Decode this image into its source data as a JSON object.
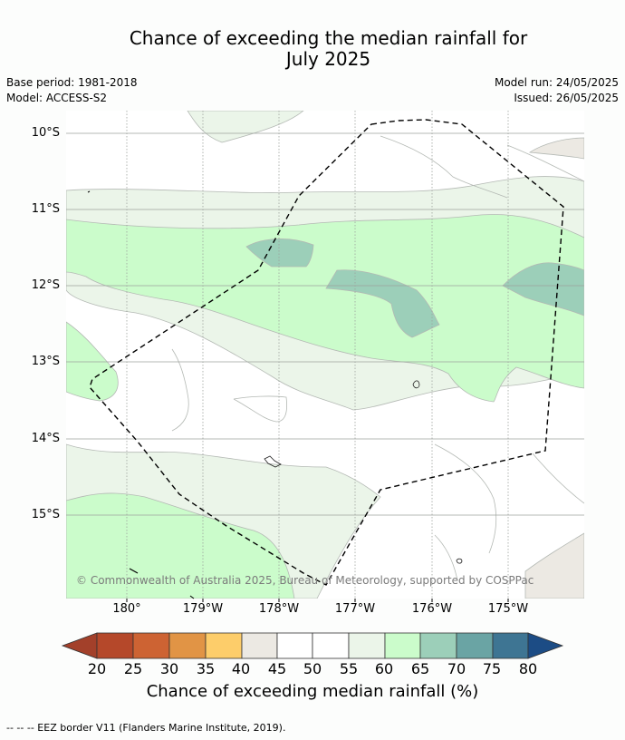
{
  "title_line1": "Chance of exceeding the median rainfall for",
  "title_line2": "July 2025",
  "base_period": "Base period: 1981-2018",
  "model": "Model: ACCESS-S2",
  "model_run": "Model run: 24/05/2025",
  "issued": "Issued: 26/05/2025",
  "lat_labels": [
    "10°S",
    "11°S",
    "12°S",
    "13°S",
    "14°S",
    "15°S"
  ],
  "lon_labels": [
    "180°",
    "179°W",
    "178°W",
    "177°W",
    "176°W",
    "175°W"
  ],
  "copyright": "© Commonwealth of Australia 2025, Bureau of Meteorology, supported by COSPPac",
  "colorbar": {
    "title": "Chance of exceeding median rainfall (%)",
    "ticks": [
      "20",
      "25",
      "30",
      "35",
      "40",
      "45",
      "50",
      "55",
      "60",
      "65",
      "70",
      "75",
      "80"
    ],
    "colors": {
      "below_20": "#a3402a",
      "20_25": "#b5482a",
      "25_30": "#cd6333",
      "30_35": "#e19445",
      "35_40": "#fdcd6a",
      "40_45": "#ece9e3",
      "45_50": "#ffffff",
      "50_55": "#ffffff",
      "55_60": "#ebf5e9",
      "60_65": "#cbfccb",
      "65_70": "#9ccfb9",
      "70_75": "#6aa4a4",
      "75_80": "#3e7593",
      "above_80": "#1c4c85"
    }
  },
  "footnote": "--  --  -- EEZ border V11 (Flanders Marine Institute, 2019)."
}
